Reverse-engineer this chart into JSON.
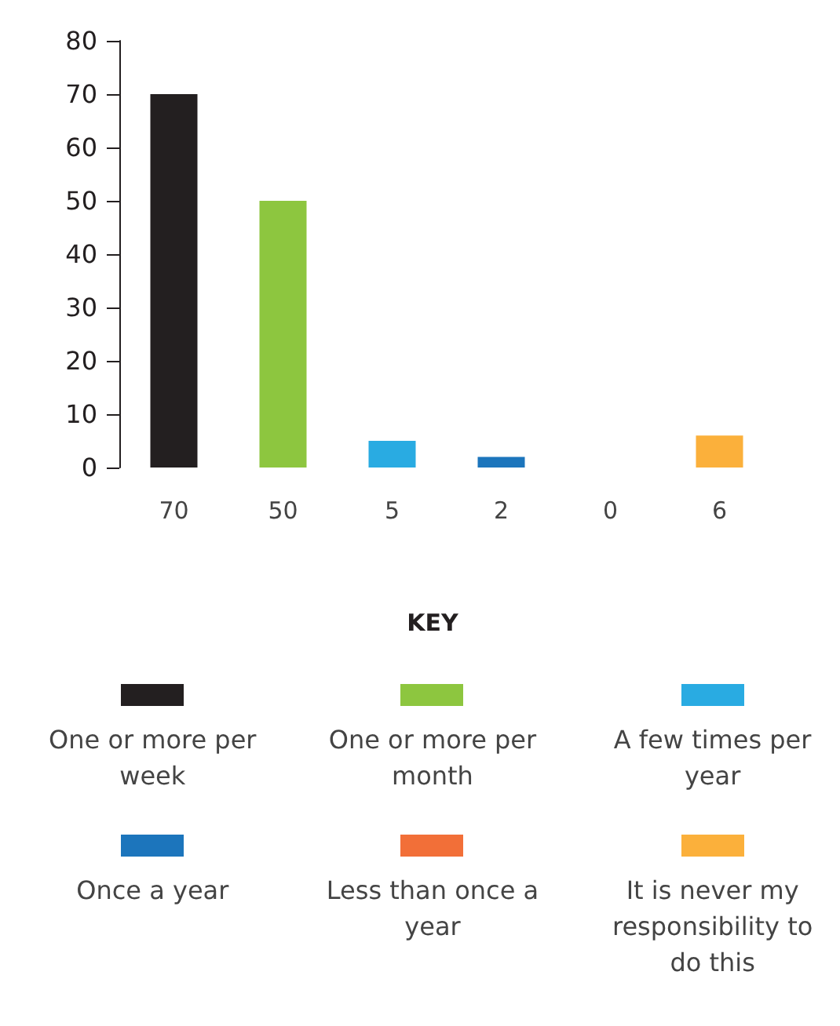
{
  "chart_data": {
    "type": "bar",
    "categories": [
      "70",
      "50",
      "5",
      "2",
      "0",
      "6"
    ],
    "series": [
      {
        "name": "One or more per week",
        "color": "#231f20",
        "values": [
          70,
          null,
          null,
          null,
          null,
          null
        ]
      },
      {
        "name": "One or more per month",
        "color": "#8dc63f",
        "values": [
          null,
          50,
          null,
          null,
          null,
          null
        ]
      },
      {
        "name": "A few times per year",
        "color": "#29abe2",
        "values": [
          null,
          null,
          5,
          null,
          null,
          null
        ]
      },
      {
        "name": "Once a year",
        "color": "#1c75bc",
        "values": [
          null,
          null,
          null,
          2,
          null,
          null
        ]
      },
      {
        "name": "Less than once a year",
        "color": "#f26f38",
        "values": [
          null,
          null,
          null,
          null,
          0,
          null
        ]
      },
      {
        "name": "It is never my responsibility to do this",
        "color": "#fbb03b",
        "values": [
          null,
          null,
          null,
          null,
          null,
          6
        ]
      }
    ],
    "ylim": [
      0,
      80
    ],
    "yticks": [
      0,
      10,
      20,
      30,
      40,
      50,
      60,
      70,
      80
    ],
    "grid": false,
    "legend": "bottom",
    "legend_title": "KEY"
  }
}
